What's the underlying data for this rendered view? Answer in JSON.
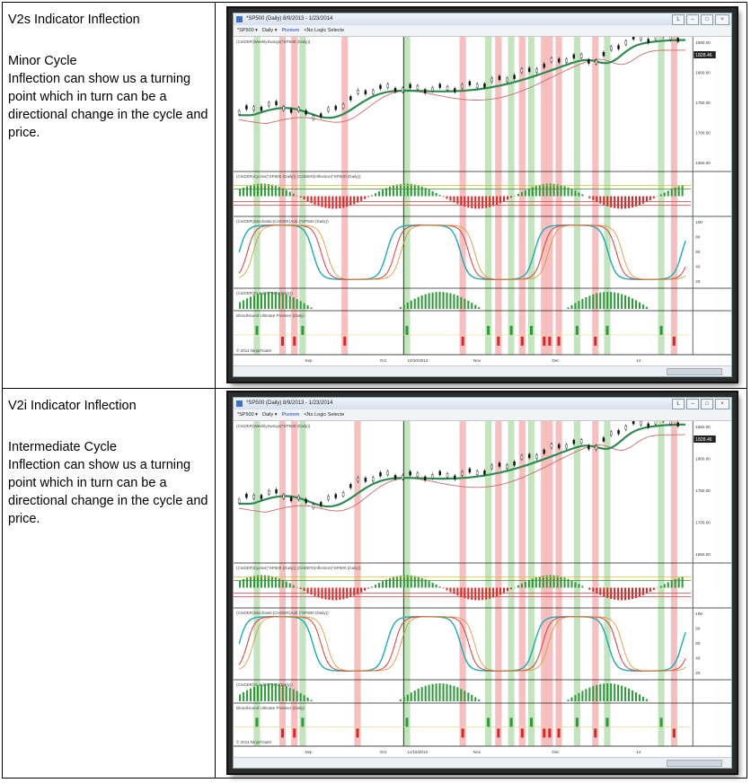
{
  "rows": [
    {
      "heading": "V2s Indicator Inflection",
      "cycle_label": "Minor Cycle",
      "description": "Inflection can show us a turning point which in turn can be a directional change in the cycle and price.",
      "screenshot": {
        "title": "*SP500 (Daily) 8/9/2013 - 1/23/2014",
        "toolbar": [
          "*SP500",
          "Daily",
          "Pivotem",
          "<No Logic Selecte"
        ],
        "price_ticks": [
          "1850.00",
          "1800.00",
          "1750.00",
          "1700.00",
          "1650.00"
        ],
        "last_price": "1828.46",
        "stoch_ticks": [
          "100",
          "80",
          "60",
          "40",
          "20"
        ],
        "date_ticks": [
          "Sep",
          "Oct",
          "10/10/2013",
          "Nov",
          "Dec",
          "14"
        ],
        "pane_labels": [
          "(CinDER)WeeklySwings(*SP500 (Daily))",
          "(CinDER)Cycles(*SP500 (Daily)) (CinDER)Inflection(*SP500 (Daily))",
          "(CinDER)Stochastic(CinDER)Add (*SP500 (Daily))",
          "(CinDER)Guru(*SP500 (Daily))",
          "BloodHound Ultimate Pivotner (Daily)",
          "© 2011 NinjaTrader"
        ]
      }
    },
    {
      "heading": "V2i Indicator Inflection",
      "cycle_label": "Intermediate Cycle",
      "description": "Inflection can show us a turning point which in turn can be a directional change in the cycle and price.",
      "screenshot": {
        "title": "*SP500 (Daily) 8/9/2013 - 1/23/2014",
        "toolbar": [
          "*SP500",
          "Daily",
          "Pivotem",
          "<No Logic Selecte"
        ],
        "price_ticks": [
          "1850.00",
          "1800.00",
          "1750.00",
          "1700.00",
          "1650.00"
        ],
        "last_price": "1828.46",
        "stoch_ticks": [
          "100",
          "80",
          "60",
          "40",
          "20"
        ],
        "date_ticks": [
          "Sep",
          "Oct",
          "11/18/2013",
          "Nov",
          "Dec",
          "14"
        ],
        "pane_labels": [
          "(CinDER)WeeklySwings(*SP500 (Daily))",
          "(CinDER)Cycles(*SP500 (Daily)) (CinDER)Inflection(*SP500 (Daily))",
          "(CinDER)Stochastic(CinDER)Add (*SP500 (Daily))",
          "(CinDER)Guru(*SP500 (Daily))",
          "BloodHound Ultimate Pivotner (Daily)",
          "© 2011 NinjaTrader"
        ]
      }
    }
  ],
  "colors": {
    "green_band": "#b9dfb3",
    "red_band": "#f4b5b5",
    "ma_green": "#2f8a4f",
    "ma_red": "#d06a6a",
    "stoch_cyan": "#23a9b5",
    "stoch_red": "#d64040",
    "stoch_orange": "#e09030",
    "bar_green": "#2f9a3a",
    "bar_red": "#d62a2a"
  }
}
